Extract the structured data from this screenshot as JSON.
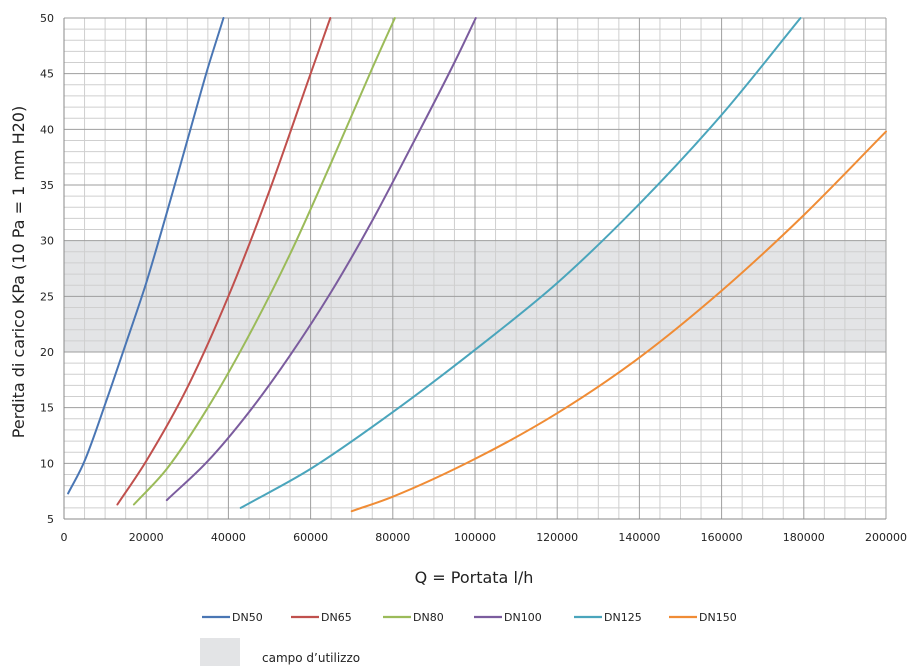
{
  "chart_data": {
    "type": "line",
    "xlabel": "Q = Portata l/h",
    "ylabel": "Perdita di carico KPa (10 Pa = 1 mm H20)",
    "xlim": [
      0,
      200000
    ],
    "ylim": [
      5,
      50
    ],
    "x_ticks": [
      "0",
      "20000",
      "40000",
      "60000",
      "80000",
      "100000",
      "120000",
      "140000",
      "160000",
      "180000",
      "200000"
    ],
    "y_ticks": [
      "5",
      "10",
      "15",
      "20",
      "25",
      "30",
      "35",
      "40",
      "45",
      "50"
    ],
    "grid": true,
    "legend_position": "bottom",
    "shaded_band": {
      "y_from": 20,
      "y_to": 30,
      "label": "campo d’utilizzo",
      "color": "#e3e4e6"
    },
    "series": [
      {
        "name": "DN50",
        "color": "#4a76b4",
        "points": [
          [
            1000,
            7.3
          ],
          [
            5000,
            10.2
          ],
          [
            10000,
            15.3
          ],
          [
            15000,
            20.7
          ],
          [
            20000,
            26.2
          ],
          [
            25000,
            32.5
          ],
          [
            30000,
            39.0
          ],
          [
            35000,
            45.5
          ],
          [
            38800,
            50.0
          ]
        ]
      },
      {
        "name": "DN65",
        "color": "#c0504d",
        "points": [
          [
            13000,
            6.3
          ],
          [
            20000,
            10.2
          ],
          [
            30000,
            16.8
          ],
          [
            40000,
            25.0
          ],
          [
            50000,
            34.5
          ],
          [
            60000,
            45.0
          ],
          [
            64800,
            50.0
          ]
        ]
      },
      {
        "name": "DN80",
        "color": "#9bbb59",
        "points": [
          [
            17000,
            6.3
          ],
          [
            25000,
            9.5
          ],
          [
            35000,
            15.0
          ],
          [
            45000,
            21.5
          ],
          [
            55000,
            28.8
          ],
          [
            65000,
            37.0
          ],
          [
            75000,
            45.5
          ],
          [
            80500,
            50.0
          ]
        ]
      },
      {
        "name": "DN100",
        "color": "#7b5c9e",
        "points": [
          [
            25000,
            6.7
          ],
          [
            35000,
            10.2
          ],
          [
            45000,
            14.6
          ],
          [
            55000,
            19.7
          ],
          [
            65000,
            25.4
          ],
          [
            75000,
            31.8
          ],
          [
            85000,
            38.8
          ],
          [
            95000,
            46.0
          ],
          [
            100200,
            50.0
          ]
        ]
      },
      {
        "name": "DN125",
        "color": "#4aa5bc",
        "points": [
          [
            43000,
            6.0
          ],
          [
            60000,
            9.5
          ],
          [
            80000,
            14.6
          ],
          [
            100000,
            20.2
          ],
          [
            120000,
            26.2
          ],
          [
            140000,
            33.3
          ],
          [
            160000,
            41.3
          ],
          [
            179200,
            50.0
          ]
        ]
      },
      {
        "name": "DN150",
        "color": "#f08c35",
        "points": [
          [
            70000,
            5.7
          ],
          [
            80000,
            7.0
          ],
          [
            100000,
            10.4
          ],
          [
            120000,
            14.5
          ],
          [
            140000,
            19.5
          ],
          [
            160000,
            25.5
          ],
          [
            180000,
            32.3
          ],
          [
            200000,
            39.8
          ]
        ]
      }
    ]
  }
}
